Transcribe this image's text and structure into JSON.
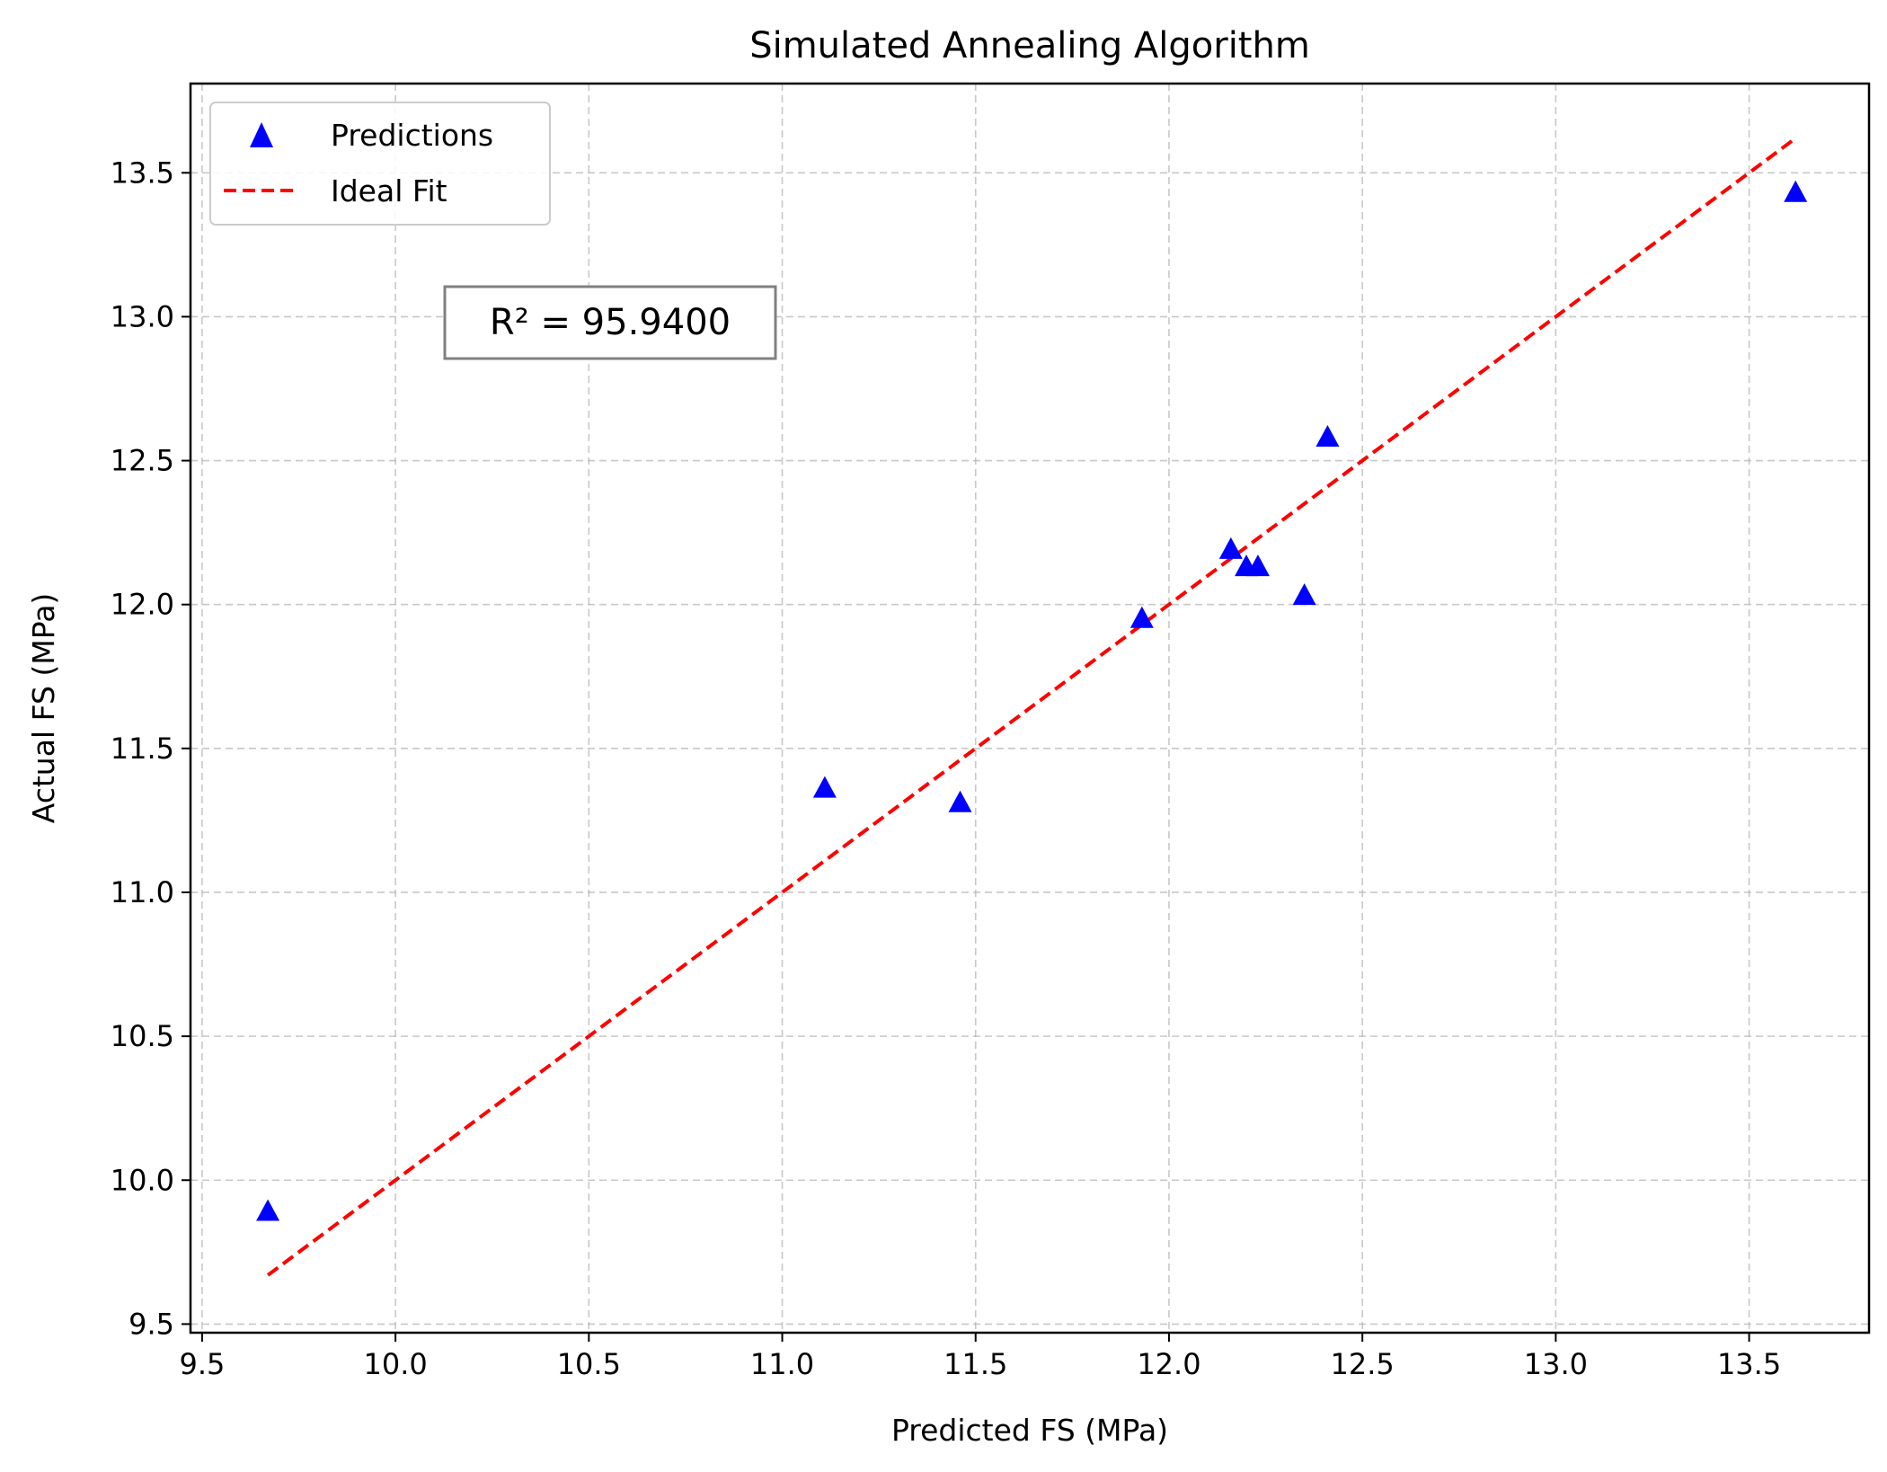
{
  "chart_data": {
    "type": "scatter",
    "title": "Simulated Annealing Algorithm",
    "xlabel": "Predicted FS (MPa)",
    "ylabel": "Actual FS (MPa)",
    "xlim": [
      9.47,
      13.81
    ],
    "ylim": [
      9.47,
      13.81
    ],
    "xticks": [
      9.5,
      10.0,
      10.5,
      11.0,
      11.5,
      12.0,
      12.5,
      13.0,
      13.5
    ],
    "yticks": [
      9.5,
      10.0,
      10.5,
      11.0,
      11.5,
      12.0,
      12.5,
      13.0,
      13.5
    ],
    "grid": true,
    "legend_position": "upper-left",
    "series": [
      {
        "name": "Predictions",
        "kind": "scatter",
        "marker": "triangle-up",
        "color": "#0000ff",
        "points": [
          {
            "x": 9.67,
            "y": 9.89
          },
          {
            "x": 11.11,
            "y": 11.36
          },
          {
            "x": 11.46,
            "y": 11.31
          },
          {
            "x": 11.93,
            "y": 11.95
          },
          {
            "x": 12.16,
            "y": 12.19
          },
          {
            "x": 12.2,
            "y": 12.13
          },
          {
            "x": 12.23,
            "y": 12.13
          },
          {
            "x": 12.35,
            "y": 12.03
          },
          {
            "x": 12.41,
            "y": 12.58
          },
          {
            "x": 13.62,
            "y": 13.43
          }
        ]
      },
      {
        "name": "Ideal Fit",
        "kind": "line",
        "style": "dashed",
        "color": "#ff0000",
        "points": [
          {
            "x": 9.67,
            "y": 9.67
          },
          {
            "x": 13.62,
            "y": 13.62
          }
        ]
      }
    ],
    "annotation": "R² = 95.9400"
  }
}
